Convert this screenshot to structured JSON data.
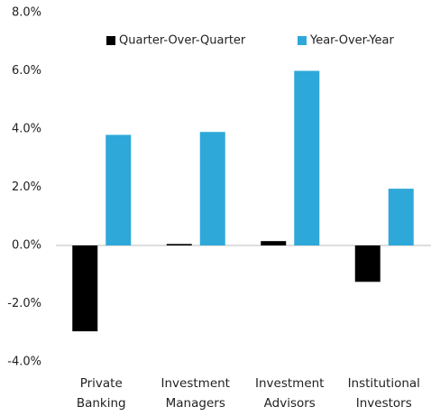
{
  "chart_data": {
    "type": "bar",
    "categories": [
      "Private Banking",
      "Investment Managers",
      "Investment Advisors",
      "Institutional Investors"
    ],
    "series": [
      {
        "name": "Quarter-Over-Quarter",
        "color": "#000000",
        "values": [
          -2.95,
          0.05,
          0.15,
          -1.25
        ]
      },
      {
        "name": "Year-Over-Year",
        "color": "#2ea8d9",
        "values": [
          3.8,
          3.9,
          6.0,
          1.95
        ]
      }
    ],
    "ylim": [
      -4,
      8
    ],
    "yticks": [
      {
        "value": -4,
        "label": "-4.0%"
      },
      {
        "value": -2,
        "label": "-2.0%"
      },
      {
        "value": 0,
        "label": "0.0%"
      },
      {
        "value": 2,
        "label": "2.0%"
      },
      {
        "value": 4,
        "label": "4.0%"
      },
      {
        "value": 6,
        "label": "6.0%"
      },
      {
        "value": 8,
        "label": "8.0%"
      }
    ],
    "grid": false,
    "legend": "top"
  }
}
